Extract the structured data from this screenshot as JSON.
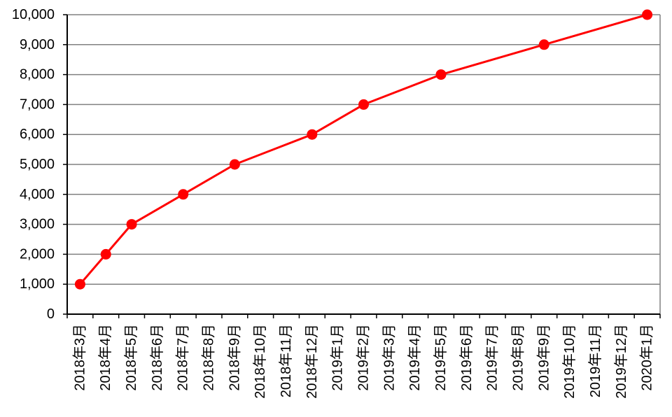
{
  "chart_data": {
    "type": "line",
    "title": "",
    "legend": "none",
    "grid": "horizontal",
    "categories": [
      "2018年3月",
      "2018年4月",
      "2018年5月",
      "2018年6月",
      "2018年7月",
      "2018年8月",
      "2018年9月",
      "2018年10月",
      "2018年11月",
      "2018年12月",
      "2019年1月",
      "2019年2月",
      "2019年3月",
      "2019年4月",
      "2019年5月",
      "2019年6月",
      "2019年7月",
      "2019年8月",
      "2019年9月",
      "2019年10月",
      "2019年11月",
      "2019年12月",
      "2020年1月"
    ],
    "series": [
      {
        "name": "series-1",
        "color": "#ff0000",
        "marker": "circle",
        "points": [
          {
            "category": "2018年3月",
            "value": 1000
          },
          {
            "category": "2018年4月",
            "value": 2000
          },
          {
            "category": "2018年5月",
            "value": 3000
          },
          {
            "category": "2018年7月",
            "value": 4000
          },
          {
            "category": "2018年9月",
            "value": 5000
          },
          {
            "category": "2018年12月",
            "value": 6000
          },
          {
            "category": "2019年2月",
            "value": 7000
          },
          {
            "category": "2019年5月",
            "value": 8000
          },
          {
            "category": "2019年9月",
            "value": 9000
          },
          {
            "category": "2020年1月",
            "value": 10000
          }
        ]
      }
    ],
    "y_axis": {
      "min": 0,
      "max": 10000,
      "interval": 1000,
      "tick_labels": [
        "0",
        "1,000",
        "2,000",
        "3,000",
        "4,000",
        "5,000",
        "6,000",
        "7,000",
        "8,000",
        "9,000",
        "10,000"
      ]
    },
    "x_axis": {
      "label_rotation": -90
    },
    "colors": {
      "line": "#ff0000",
      "marker": "#ff0000",
      "gridline": "#808080",
      "plot_border": "#808080",
      "axis": "#000000",
      "label_text": "#000000",
      "background": "#ffffff"
    }
  }
}
